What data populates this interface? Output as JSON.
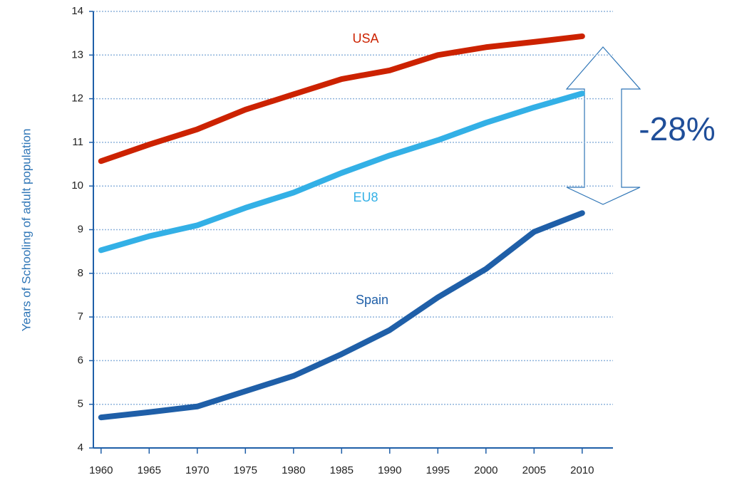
{
  "chart_data": {
    "type": "line",
    "y_label": "Years of Schooling of adult population",
    "x": [
      1960,
      1965,
      1970,
      1975,
      1980,
      1985,
      1990,
      1995,
      2000,
      2005,
      2010
    ],
    "series": [
      {
        "name": "USA",
        "color": "#cc2200",
        "values": [
          10.57,
          10.95,
          11.3,
          11.75,
          12.1,
          12.45,
          12.65,
          13.0,
          13.18,
          13.3,
          13.43
        ]
      },
      {
        "name": "EU8",
        "color": "#33b0e6",
        "values": [
          8.53,
          8.85,
          9.1,
          9.5,
          9.85,
          10.3,
          10.7,
          11.05,
          11.45,
          11.8,
          12.12
        ]
      },
      {
        "name": "Spain",
        "color": "#1f5fa8",
        "values": [
          4.7,
          4.82,
          4.95,
          5.3,
          5.65,
          6.15,
          6.7,
          7.45,
          8.1,
          8.95,
          9.38
        ]
      }
    ],
    "annotation": "-28%",
    "xlim": [
      1959.2,
      2013.2
    ],
    "xticks": [
      1960,
      1965,
      1970,
      1975,
      1980,
      1985,
      1990,
      1995,
      2000,
      2005,
      2010
    ],
    "ylim": [
      4,
      14
    ],
    "yticks": [
      4,
      5,
      6,
      7,
      8,
      9,
      10,
      11,
      12,
      13,
      14
    ],
    "grid": true
  }
}
